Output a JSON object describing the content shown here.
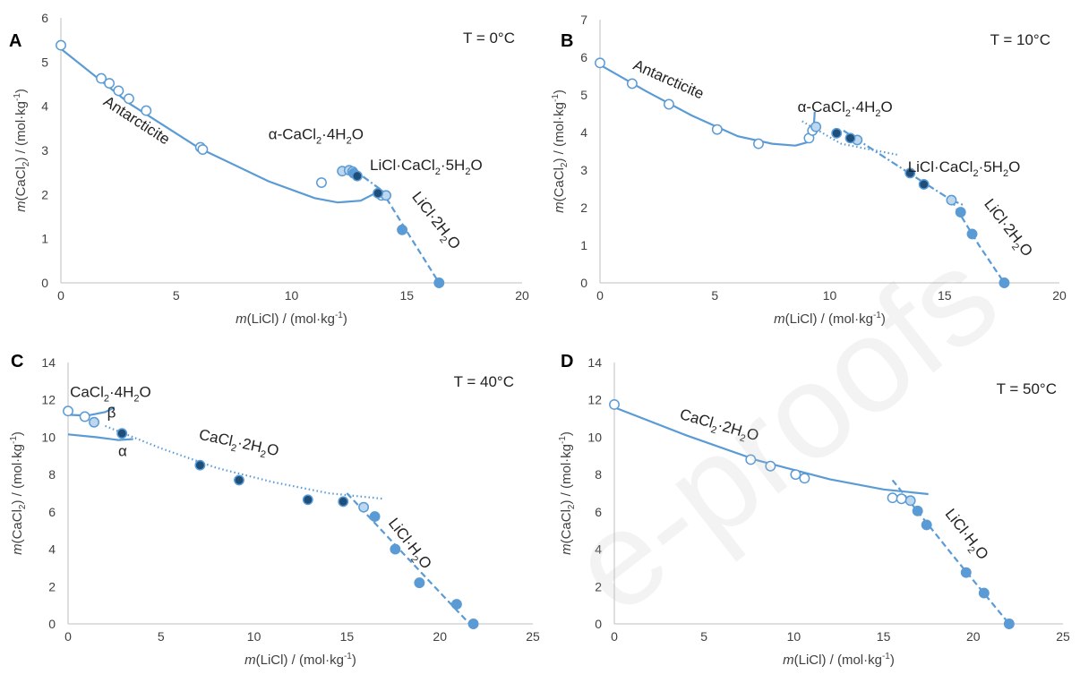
{
  "watermark": "e-proofs",
  "colors": {
    "line": "#5b9bd5",
    "open_marker": "#5b9bd5",
    "mid_fill": "#5b9bd5",
    "dark_fill": "#1f4e79",
    "light_fill": "#bdd7ee",
    "axis": "#bfbfbf",
    "text": "#404040"
  },
  "chart_data": [
    {
      "id": "A",
      "type": "scatter",
      "panel_label": "A",
      "temperature": "T = 0°C",
      "xlabel": {
        "pre": "m",
        "main": "(LiCl) / (mol·kg",
        "sup": "-1",
        "post": ")"
      },
      "ylabel": {
        "pre": "m",
        "main": "(CaCl",
        "sub": "2",
        "post": ") / (mol·kg",
        "sup": "-1",
        "end": ")"
      },
      "xlim": [
        0,
        20
      ],
      "ylim": [
        0,
        6
      ],
      "xticks": [
        0,
        5,
        10,
        15,
        20
      ],
      "yticks": [
        0,
        1,
        2,
        3,
        4,
        5,
        6
      ],
      "series": [
        {
          "style": "open",
          "points": [
            [
              0,
              5.38
            ],
            [
              1.75,
              4.63
            ],
            [
              2.1,
              4.52
            ],
            [
              2.5,
              4.35
            ],
            [
              2.95,
              4.17
            ],
            [
              3.7,
              3.9
            ],
            [
              6.05,
              3.07
            ],
            [
              6.15,
              3.02
            ],
            [
              11.3,
              2.27
            ],
            [
              13.9,
              1.98
            ]
          ]
        },
        {
          "style": "light",
          "points": [
            [
              12.2,
              2.53
            ],
            [
              12.5,
              2.55
            ],
            [
              12.65,
              2.52
            ],
            [
              14.1,
              1.98
            ]
          ]
        },
        {
          "style": "mid",
          "points": [
            [
              12.7,
              2.48
            ],
            [
              14.8,
              1.2
            ],
            [
              16.4,
              0.0
            ]
          ]
        },
        {
          "style": "dark",
          "points": [
            [
              12.85,
              2.42
            ],
            [
              13.75,
              2.03
            ]
          ]
        }
      ],
      "curves": [
        {
          "dash": "solid",
          "points": [
            [
              0,
              5.3
            ],
            [
              3,
              4.05
            ],
            [
              6,
              3.05
            ],
            [
              9,
              2.3
            ],
            [
              11,
              1.92
            ],
            [
              12,
              1.82
            ],
            [
              13,
              1.86
            ],
            [
              13.9,
              2.1
            ]
          ]
        },
        {
          "dash": "dashdot",
          "points": [
            [
              12.6,
              2.6
            ],
            [
              13.9,
              2.1
            ]
          ]
        },
        {
          "dash": "dashed",
          "points": [
            [
              13.9,
              2.1
            ],
            [
              15.2,
              1.0
            ],
            [
              16.4,
              0.0
            ]
          ]
        }
      ],
      "annotations": [
        {
          "parts": [
            [
              "t",
              "Antarcticite"
            ]
          ],
          "at": [
            1.8,
            4.05
          ],
          "rotate": 33
        },
        {
          "parts": [
            [
              "t",
              "α-CaCl"
            ],
            [
              "sub",
              "2"
            ],
            [
              "t",
              "·4H"
            ],
            [
              "sub",
              "2"
            ],
            [
              "t",
              "O"
            ]
          ],
          "at": [
            9.0,
            3.25
          ],
          "rotate": 0
        },
        {
          "parts": [
            [
              "t",
              "LiCl·CaCl"
            ],
            [
              "sub",
              "2"
            ],
            [
              "t",
              "·5H"
            ],
            [
              "sub",
              "2"
            ],
            [
              "t",
              "O"
            ]
          ],
          "at": [
            13.4,
            2.55
          ],
          "rotate": 0
        },
        {
          "parts": [
            [
              "t",
              "LiCl·2H"
            ],
            [
              "sub",
              "2"
            ],
            [
              "t",
              "O"
            ]
          ],
          "at": [
            15.2,
            1.95
          ],
          "rotate": 52
        }
      ]
    },
    {
      "id": "B",
      "type": "scatter",
      "panel_label": "B",
      "temperature": "T = 10°C",
      "xlabel": {
        "pre": "m",
        "main": "(LiCl) / (mol·kg",
        "sup": "-1",
        "post": ")"
      },
      "ylabel": {
        "pre": "m",
        "main": "(CaCl",
        "sub": "2",
        "post": ") / (mol·kg",
        "sup": "-1",
        "end": ")"
      },
      "xlim": [
        0,
        20
      ],
      "ylim": [
        0,
        7
      ],
      "xticks": [
        0,
        5,
        10,
        15,
        20
      ],
      "yticks": [
        0,
        1,
        2,
        3,
        4,
        5,
        6,
        7
      ],
      "series": [
        {
          "style": "open",
          "points": [
            [
              0,
              5.85
            ],
            [
              1.4,
              5.3
            ],
            [
              3.0,
              4.75
            ],
            [
              5.1,
              4.08
            ],
            [
              6.9,
              3.7
            ],
            [
              9.1,
              3.85
            ],
            [
              9.25,
              4.05
            ]
          ]
        },
        {
          "style": "light",
          "points": [
            [
              9.4,
              4.15
            ],
            [
              11.2,
              3.8
            ],
            [
              15.3,
              2.2
            ]
          ]
        },
        {
          "style": "mid",
          "points": [
            [
              15.7,
              1.88
            ],
            [
              16.2,
              1.3
            ],
            [
              17.6,
              0.0
            ]
          ]
        },
        {
          "style": "dark",
          "points": [
            [
              10.3,
              3.98
            ],
            [
              10.9,
              3.85
            ],
            [
              13.5,
              2.92
            ],
            [
              14.1,
              2.62
            ]
          ]
        }
      ],
      "curves": [
        {
          "dash": "solid",
          "points": [
            [
              0,
              5.8
            ],
            [
              2,
              5.1
            ],
            [
              4,
              4.45
            ],
            [
              6,
              3.9
            ],
            [
              7.5,
              3.7
            ],
            [
              8.5,
              3.65
            ],
            [
              9.1,
              3.75
            ],
            [
              9.3,
              4.05
            ],
            [
              9.35,
              4.55
            ]
          ]
        },
        {
          "dash": "dotted",
          "points": [
            [
              8.8,
              4.3
            ],
            [
              10.5,
              3.7
            ],
            [
              13,
              3.4
            ]
          ]
        },
        {
          "dash": "dashdot",
          "points": [
            [
              10.6,
              4.05
            ],
            [
              13.5,
              2.9
            ],
            [
              15.3,
              2.2
            ],
            [
              15.9,
              2.05
            ]
          ]
        },
        {
          "dash": "dashed",
          "points": [
            [
              15.3,
              2.2
            ],
            [
              16.5,
              1.0
            ],
            [
              17.6,
              0.0
            ]
          ]
        }
      ],
      "annotations": [
        {
          "parts": [
            [
              "t",
              "Antarcticite"
            ]
          ],
          "at": [
            1.4,
            5.7
          ],
          "rotate": 24
        },
        {
          "parts": [
            [
              "t",
              "α-CaCl"
            ],
            [
              "sub",
              "2"
            ],
            [
              "t",
              "·4H"
            ],
            [
              "sub",
              "2"
            ],
            [
              "t",
              "O"
            ]
          ],
          "at": [
            8.6,
            4.55
          ],
          "rotate": 0
        },
        {
          "parts": [
            [
              "t",
              "LiCl·CaCl"
            ],
            [
              "sub",
              "2"
            ],
            [
              "t",
              "·5H"
            ],
            [
              "sub",
              "2"
            ],
            [
              "t",
              "O"
            ]
          ],
          "at": [
            13.4,
            2.95
          ],
          "rotate": 0
        },
        {
          "parts": [
            [
              "t",
              "LiCl·2H"
            ],
            [
              "sub",
              "2"
            ],
            [
              "t",
              "O"
            ]
          ],
          "at": [
            16.7,
            2.1
          ],
          "rotate": 52
        }
      ]
    },
    {
      "id": "C",
      "type": "scatter",
      "panel_label": "C",
      "temperature": "T = 40°C",
      "xlabel": {
        "pre": "m",
        "main": "(LiCl) / (mol·kg",
        "sup": "-1",
        "post": ")"
      },
      "ylabel": {
        "pre": "m",
        "main": "(CaCl",
        "sub": "2",
        "post": ") / (mol·kg",
        "sup": "-1",
        "end": ")"
      },
      "xlim": [
        0,
        25
      ],
      "ylim": [
        0,
        14
      ],
      "xticks": [
        0,
        5,
        10,
        15,
        20,
        25
      ],
      "yticks": [
        0,
        2,
        4,
        6,
        8,
        10,
        12,
        14
      ],
      "series": [
        {
          "style": "open",
          "points": [
            [
              0,
              11.4
            ],
            [
              0.9,
              11.1
            ]
          ]
        },
        {
          "style": "light",
          "points": [
            [
              1.4,
              10.8
            ],
            [
              15.9,
              6.25
            ]
          ]
        },
        {
          "style": "mid",
          "points": [
            [
              16.5,
              5.75
            ],
            [
              17.6,
              4.0
            ],
            [
              18.9,
              2.2
            ],
            [
              20.9,
              1.05
            ],
            [
              21.8,
              0.0
            ]
          ]
        },
        {
          "style": "dark",
          "points": [
            [
              2.9,
              10.2
            ],
            [
              7.1,
              8.5
            ],
            [
              9.2,
              7.7
            ],
            [
              12.9,
              6.65
            ],
            [
              14.8,
              6.55
            ]
          ]
        }
      ],
      "curves": [
        {
          "dash": "solid",
          "points": [
            [
              0,
              11.2
            ],
            [
              1,
              11.15
            ],
            [
              2,
              11.35
            ],
            [
              2.5,
              11.6
            ]
          ]
        },
        {
          "dash": "solid",
          "points": [
            [
              0,
              10.15
            ],
            [
              1.5,
              10.0
            ],
            [
              2.7,
              9.85
            ],
            [
              3.5,
              9.9
            ]
          ]
        },
        {
          "dash": "dotted",
          "points": [
            [
              2,
              10.6
            ],
            [
              5,
              9.4
            ],
            [
              8,
              8.35
            ],
            [
              11,
              7.6
            ],
            [
              14,
              7.0
            ],
            [
              17,
              6.7
            ]
          ]
        },
        {
          "dash": "dashed",
          "points": [
            [
              15.0,
              7.0
            ],
            [
              18,
              3.8
            ],
            [
              21.6,
              0.0
            ]
          ]
        }
      ],
      "annotations": [
        {
          "parts": [
            [
              "t",
              "CaCl"
            ],
            [
              "sub",
              "2"
            ],
            [
              "t",
              "·4H"
            ],
            [
              "sub",
              "2"
            ],
            [
              "t",
              "O"
            ]
          ],
          "at": [
            0.1,
            12.15
          ],
          "rotate": 0
        },
        {
          "parts": [
            [
              "t",
              "β"
            ]
          ],
          "at": [
            2.1,
            11.05
          ],
          "rotate": 0
        },
        {
          "parts": [
            [
              "t",
              "α"
            ]
          ],
          "at": [
            2.7,
            9.0
          ],
          "rotate": 0
        },
        {
          "parts": [
            [
              "t",
              "CaCl"
            ],
            [
              "sub",
              "2"
            ],
            [
              "t",
              "·2H"
            ],
            [
              "sub",
              "2"
            ],
            [
              "t",
              "O"
            ]
          ],
          "at": [
            7.0,
            9.9
          ],
          "rotate": 12
        },
        {
          "parts": [
            [
              "t",
              "LiCl·H"
            ],
            [
              "sub",
              "2"
            ],
            [
              "t",
              "O"
            ]
          ],
          "at": [
            17.2,
            5.4
          ],
          "rotate": 52
        }
      ]
    },
    {
      "id": "D",
      "type": "scatter",
      "panel_label": "D",
      "temperature": "T = 50°C",
      "xlabel": {
        "pre": "m",
        "main": "(LiCl) / (mol·kg",
        "sup": "-1",
        "post": ")"
      },
      "ylabel": {
        "pre": "m",
        "main": "(CaCl",
        "sub": "2",
        "post": ") / (mol·kg",
        "sup": "-1",
        "end": ")"
      },
      "xlim": [
        0,
        25
      ],
      "ylim": [
        0,
        14
      ],
      "xticks": [
        0,
        5,
        10,
        15,
        20,
        25
      ],
      "yticks": [
        0,
        2,
        4,
        6,
        8,
        10,
        12,
        14
      ],
      "series": [
        {
          "style": "open",
          "points": [
            [
              0,
              11.75
            ],
            [
              7.6,
              8.8
            ],
            [
              8.7,
              8.45
            ],
            [
              10.1,
              8.0
            ],
            [
              10.6,
              7.8
            ],
            [
              15.5,
              6.75
            ],
            [
              16.0,
              6.7
            ]
          ]
        },
        {
          "style": "light",
          "points": [
            [
              16.5,
              6.6
            ]
          ]
        },
        {
          "style": "mid",
          "points": [
            [
              16.9,
              6.05
            ],
            [
              17.4,
              5.3
            ],
            [
              19.6,
              2.75
            ],
            [
              20.6,
              1.65
            ],
            [
              22.0,
              0.0
            ]
          ]
        },
        {
          "style": "dark",
          "points": []
        }
      ],
      "curves": [
        {
          "dash": "solid",
          "points": [
            [
              0,
              11.6
            ],
            [
              4,
              10.1
            ],
            [
              8,
              8.75
            ],
            [
              12,
              7.75
            ],
            [
              15,
              7.2
            ],
            [
              17.5,
              6.95
            ]
          ]
        },
        {
          "dash": "dashed",
          "points": [
            [
              15.5,
              7.7
            ],
            [
              19,
              3.5
            ],
            [
              22,
              0.0
            ]
          ]
        }
      ],
      "annotations": [
        {
          "parts": [
            [
              "t",
              "CaCl"
            ],
            [
              "sub",
              "2"
            ],
            [
              "t",
              "·2H"
            ],
            [
              "sub",
              "2"
            ],
            [
              "t",
              "O"
            ]
          ],
          "at": [
            3.6,
            11.0
          ],
          "rotate": 16
        },
        {
          "parts": [
            [
              "t",
              "LiCl·H"
            ],
            [
              "sub",
              "2"
            ],
            [
              "t",
              "O"
            ]
          ],
          "at": [
            18.4,
            5.9
          ],
          "rotate": 52
        }
      ]
    }
  ]
}
